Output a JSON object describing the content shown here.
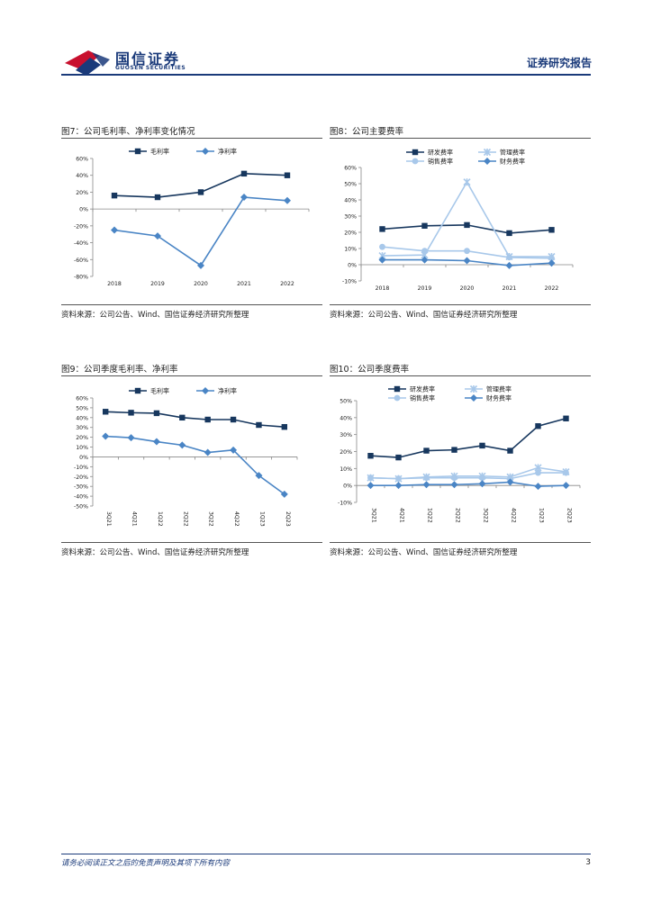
{
  "header": {
    "brand_cn": "国信证券",
    "brand_en": "GUOSEN SECURITIES",
    "report_type": "证券研究报告"
  },
  "colors": {
    "brand": "#1a3a7a",
    "dark_series": "#17375e",
    "mid_series": "#4a85c5",
    "light_series": "#a8c8ea"
  },
  "panels": [
    {
      "title": "图7：公司毛利率、净利率变化情况",
      "source": "资料来源：公司公告、Wind、国信证券经济研究所整理"
    },
    {
      "title": "图8：公司主要费率",
      "source": "资料来源：公司公告、Wind、国信证券经济研究所整理"
    },
    {
      "title": "图9：公司季度毛利率、净利率",
      "source": "资料来源：公司公告、Wind、国信证券经济研究所整理"
    },
    {
      "title": "图10：公司季度费率",
      "source": "资料来源：公司公告、Wind、国信证券经济研究所整理"
    }
  ],
  "chart_data": [
    {
      "type": "line",
      "categories": [
        "2018",
        "2019",
        "2020",
        "2021",
        "2022"
      ],
      "ylim": [
        -80,
        60
      ],
      "yticks": [
        -80,
        -60,
        -40,
        -20,
        0,
        20,
        40,
        60
      ],
      "ytick_labels": [
        "-80%",
        "-60%",
        "-40%",
        "-20%",
        "0%",
        "20%",
        "40%",
        "60%"
      ],
      "legend_position": "top",
      "series": [
        {
          "name": "毛利率",
          "marker": "square",
          "color": "#17375e",
          "values": [
            16,
            14,
            20,
            42,
            40
          ]
        },
        {
          "name": "净利率",
          "marker": "diamond",
          "color": "#4a85c5",
          "values": [
            -25,
            -32,
            -67,
            14,
            10
          ]
        }
      ]
    },
    {
      "type": "line",
      "categories": [
        "2018",
        "2019",
        "2020",
        "2021",
        "2022"
      ],
      "ylim": [
        -10,
        60
      ],
      "yticks": [
        -10,
        0,
        10,
        20,
        30,
        40,
        50,
        60
      ],
      "ytick_labels": [
        "-10%",
        "0%",
        "10%",
        "20%",
        "30%",
        "40%",
        "50%",
        "60%"
      ],
      "legend_position": "top",
      "series": [
        {
          "name": "研发费率",
          "marker": "square",
          "color": "#17375e",
          "values": [
            22,
            24,
            24.5,
            19.5,
            21.5
          ]
        },
        {
          "name": "管理费率",
          "marker": "star",
          "color": "#a8c8ea",
          "values": [
            5.5,
            6,
            51,
            5,
            5
          ]
        },
        {
          "name": "销售费率",
          "marker": "circle",
          "color": "#a8c8ea",
          "values": [
            11,
            8.5,
            8.5,
            4.5,
            4
          ]
        },
        {
          "name": "财务费率",
          "marker": "diamond",
          "color": "#4a85c5",
          "values": [
            3,
            3,
            2.5,
            -0.5,
            1
          ]
        }
      ]
    },
    {
      "type": "line",
      "categories": [
        "3Q21",
        "4Q21",
        "1Q22",
        "2Q22",
        "3Q22",
        "4Q22",
        "1Q23",
        "2Q23"
      ],
      "ylim": [
        -50,
        60
      ],
      "yticks": [
        -50,
        -40,
        -30,
        -20,
        -10,
        0,
        10,
        20,
        30,
        40,
        50,
        60
      ],
      "ytick_labels": [
        "-50%",
        "-40%",
        "-30%",
        "-20%",
        "-10%",
        "0%",
        "10%",
        "20%",
        "30%",
        "40%",
        "50%",
        "60%"
      ],
      "legend_position": "top",
      "series": [
        {
          "name": "毛利率",
          "marker": "square",
          "color": "#17375e",
          "values": [
            46,
            45,
            44.5,
            40,
            38,
            38,
            32.5,
            30.5
          ]
        },
        {
          "name": "净利率",
          "marker": "diamond",
          "color": "#4a85c5",
          "values": [
            21,
            19.5,
            15.5,
            12,
            4.5,
            7,
            -19,
            -38
          ]
        }
      ]
    },
    {
      "type": "line",
      "categories": [
        "3Q21",
        "4Q21",
        "1Q22",
        "2Q22",
        "3Q22",
        "4Q22",
        "1Q23",
        "2Q23"
      ],
      "ylim": [
        -10,
        50
      ],
      "yticks": [
        -10,
        0,
        10,
        20,
        30,
        40,
        50
      ],
      "ytick_labels": [
        "-10%",
        "0%",
        "10%",
        "20%",
        "30%",
        "40%",
        "50%"
      ],
      "legend_position": "top",
      "series": [
        {
          "name": "研发费率",
          "marker": "square",
          "color": "#17375e",
          "values": [
            17.5,
            16.5,
            20.5,
            21,
            23.5,
            20.5,
            35,
            39.5
          ]
        },
        {
          "name": "管理费率",
          "marker": "star",
          "color": "#a8c8ea",
          "values": [
            4.5,
            4,
            5,
            5.5,
            5.5,
            5,
            10.5,
            8
          ]
        },
        {
          "name": "销售费率",
          "marker": "circle",
          "color": "#a8c8ea",
          "values": [
            4.5,
            4,
            4.5,
            4.5,
            4.5,
            4,
            7.5,
            7.5
          ]
        },
        {
          "name": "财务费率",
          "marker": "diamond",
          "color": "#4a85c5",
          "values": [
            0,
            0,
            0.5,
            0.5,
            1,
            2,
            -0.5,
            0
          ]
        }
      ]
    }
  ],
  "footer": {
    "disclaimer": "请务必阅读正文之后的免责声明及其项下所有内容",
    "page_number": "3"
  }
}
